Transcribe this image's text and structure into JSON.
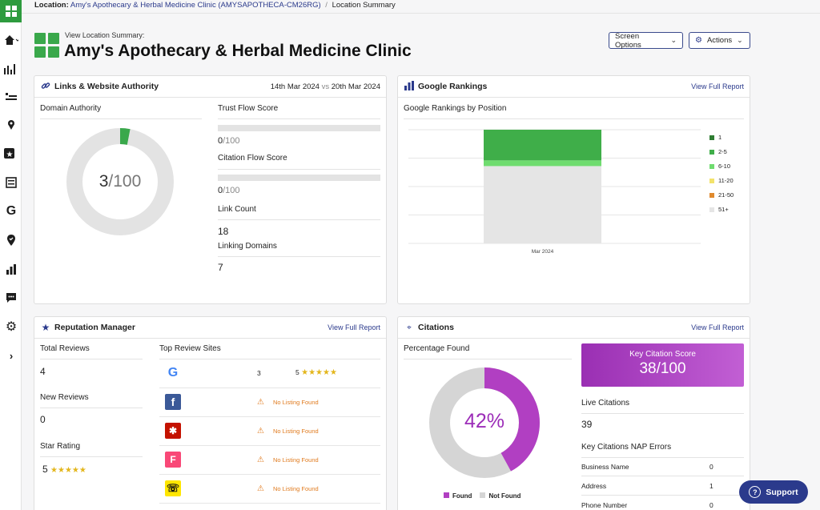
{
  "breadcrumb": {
    "label": "Location:",
    "location": "Amy's Apothecary & Herbal Medicine Clinic (AMYSAPOTHECA-CM26RG)",
    "separator": "/",
    "current": "Location Summary"
  },
  "header": {
    "subtitle": "View Location Summary:",
    "title": "Amy's Apothecary & Herbal Medicine Clinic",
    "screen_options": "Screen Options",
    "actions": "Actions"
  },
  "sidebar": {
    "icons": [
      "grid-icon",
      "home-icon",
      "chart-icon",
      "rankings-icon",
      "map-pin-icon",
      "star-icon",
      "list-icon",
      "google-icon",
      "location-icon",
      "bar-chart-icon",
      "chat-icon",
      "gear-icon",
      "chevron-right-icon"
    ]
  },
  "links": {
    "title": "Links & Website Authority",
    "date_from": "14th Mar 2024",
    "vs": "vs",
    "date_to": "20th Mar 2024",
    "domain_authority_label": "Domain Authority",
    "domain_authority_value": "3",
    "domain_authority_max": "/100",
    "domain_authority_fraction": 0.03,
    "trust_flow_label": "Trust Flow Score",
    "trust_flow_value": "0",
    "trust_flow_max": "/100",
    "citation_flow_label": "Citation Flow Score",
    "citation_flow_value": "0",
    "citation_flow_max": "/100",
    "link_count_label": "Link Count",
    "link_count_value": "18",
    "linking_domains_label": "Linking Domains",
    "linking_domains_value": "7",
    "colors": {
      "accent": "#3aa84b",
      "track": "#e3e3e3"
    }
  },
  "google": {
    "title": "Google Rankings",
    "view_link": "View Full Report",
    "subtitle": "Google Rankings by Position",
    "chart_data": {
      "type": "bar",
      "stacked": true,
      "categories": [
        "Mar 2024"
      ],
      "series": [
        {
          "name": "1",
          "color": "#2f7d32",
          "values": [
            0
          ]
        },
        {
          "name": "2-5",
          "color": "#3fae49",
          "values": [
            27
          ]
        },
        {
          "name": "6-10",
          "color": "#6fdc6f",
          "values": [
            5
          ]
        },
        {
          "name": "11-20",
          "color": "#f3e36b",
          "values": [
            0
          ]
        },
        {
          "name": "21-50",
          "color": "#e08a2e",
          "values": [
            0
          ]
        },
        {
          "name": "51+",
          "color": "#e5e5e5",
          "values": [
            68
          ]
        }
      ],
      "ylim": [
        0,
        100
      ],
      "grid": true,
      "legend": "right"
    }
  },
  "reputation": {
    "title": "Reputation Manager",
    "view_link": "View Full Report",
    "total_reviews_label": "Total Reviews",
    "total_reviews_value": "4",
    "new_reviews_label": "New Reviews",
    "new_reviews_value": "0",
    "star_rating_label": "Star Rating",
    "star_rating_value": "5",
    "stars": "★★★★★",
    "top_sites_label": "Top Review Sites",
    "sites": [
      {
        "icon": "google-icon",
        "count": "3",
        "rating": "5",
        "stars": "★★★★★"
      },
      {
        "icon": "facebook-icon",
        "status": "No Listing Found"
      },
      {
        "icon": "yelp-icon",
        "status": "No Listing Found"
      },
      {
        "icon": "foursquare-icon",
        "status": "No Listing Found"
      },
      {
        "icon": "yellowpages-icon",
        "status": "No Listing Found"
      }
    ]
  },
  "citations": {
    "title": "Citations",
    "view_link": "View Full Report",
    "percentage_label": "Percentage Found",
    "percentage_value": "42%",
    "found_fraction": 0.42,
    "legend_found": "Found",
    "legend_not_found": "Not Found",
    "colors": {
      "found": "#b13fc2",
      "not_found": "#d5d5d5"
    },
    "kcs_label": "Key Citation Score",
    "kcs_value": "38/100",
    "live_label": "Live Citations",
    "live_value": "39",
    "nap_label": "Key Citations NAP Errors",
    "nap_rows": [
      {
        "label": "Business Name",
        "value": "0"
      },
      {
        "label": "Address",
        "value": "1"
      },
      {
        "label": "Phone Number",
        "value": "0"
      }
    ]
  },
  "support": {
    "label": "Support"
  }
}
